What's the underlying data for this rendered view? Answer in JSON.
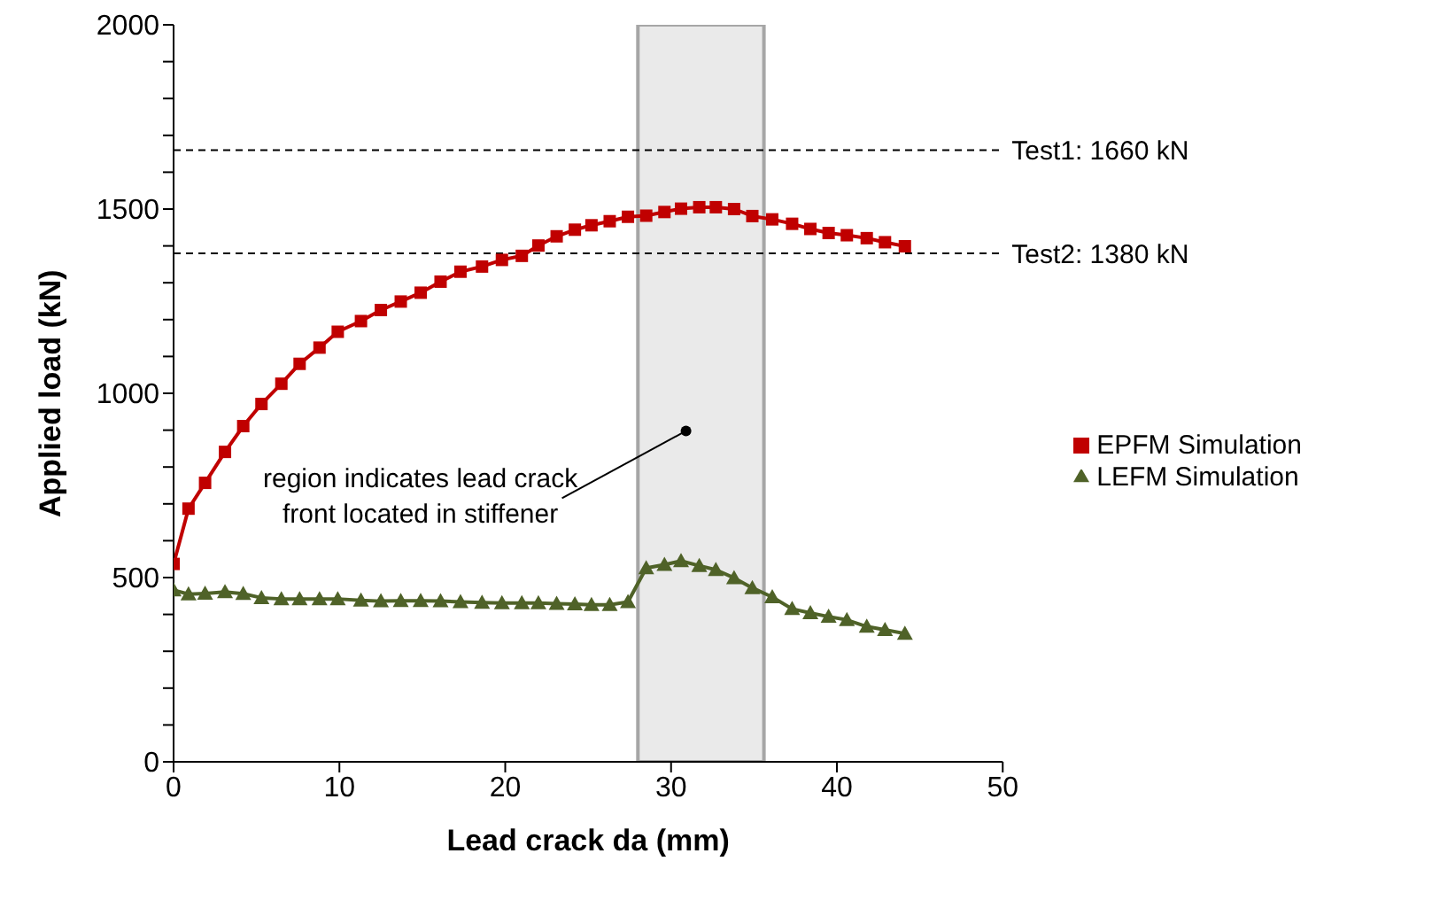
{
  "chart_data": {
    "type": "line",
    "xlabel": "Lead crack da (mm)",
    "ylabel": "Applied load (kN)",
    "x": [
      0,
      0.9,
      1.9,
      3.1,
      4.2,
      5.3,
      6.5,
      7.6,
      8.8,
      9.9,
      11.3,
      12.5,
      13.7,
      14.9,
      16.1,
      17.3,
      18.6,
      19.8,
      21.0,
      22.0,
      23.1,
      24.2,
      25.2,
      26.3,
      27.4,
      28.5,
      29.6,
      30.6,
      31.7,
      32.7,
      33.8,
      34.9,
      36.1,
      37.3,
      38.4,
      39.5,
      40.6,
      41.8,
      42.9,
      44.1
    ],
    "series": [
      {
        "name": "EPFM Simulation",
        "color": "#c00000",
        "marker": "square",
        "values": [
          537,
          687,
          757,
          841,
          911,
          971,
          1026,
          1080,
          1124,
          1167,
          1196,
          1226,
          1249,
          1273,
          1303,
          1330,
          1344,
          1362,
          1373,
          1401,
          1426,
          1444,
          1456,
          1467,
          1479,
          1482,
          1492,
          1501,
          1505,
          1505,
          1500,
          1481,
          1472,
          1460,
          1446,
          1435,
          1429,
          1421,
          1410,
          1399
        ]
      },
      {
        "name": "LEFM Simulation",
        "color": "#4f6228",
        "marker": "triangle",
        "values": [
          466,
          455,
          457,
          461,
          456,
          445,
          442,
          442,
          442,
          442,
          438,
          436,
          437,
          437,
          436,
          434,
          432,
          431,
          431,
          431,
          429,
          428,
          426,
          426,
          434,
          526,
          535,
          545,
          532,
          521,
          499,
          472,
          447,
          415,
          404,
          394,
          385,
          367,
          358,
          348
        ]
      }
    ],
    "xlim": [
      0,
      50
    ],
    "xticks": [
      0,
      10,
      20,
      30,
      40,
      50
    ],
    "ylim": [
      0,
      2000
    ],
    "yticks": [
      0,
      {
        "value": 100,
        "label": null
      },
      {
        "value": 200,
        "label": null
      },
      {
        "value": 300,
        "label": null
      },
      {
        "value": 400,
        "label": null
      },
      500,
      {
        "value": 600,
        "label": null
      },
      {
        "value": 700,
        "label": null
      },
      {
        "value": 800,
        "label": null
      },
      {
        "value": 900,
        "label": null
      },
      1000,
      {
        "value": 1100,
        "label": null
      },
      {
        "value": 1200,
        "label": null
      },
      {
        "value": 1300,
        "label": null
      },
      {
        "value": 1400,
        "label": null
      },
      1500,
      {
        "value": 1600,
        "label": null
      },
      {
        "value": 1700,
        "label": null
      },
      {
        "value": 1800,
        "label": null
      },
      {
        "value": 1900,
        "label": null
      },
      2000
    ],
    "ref_lines": [
      {
        "axis": "y",
        "value": 1660,
        "label": "Test1: 1660 kN",
        "color": "#000000",
        "line_style": "dashed"
      },
      {
        "axis": "y",
        "value": 1380,
        "label": "Test2: 1380 kN",
        "color": "#000000",
        "line_style": "dashed"
      }
    ],
    "bands": [
      {
        "axis": "x",
        "from": 28,
        "to": 35.6,
        "color": "#e8e8e8"
      }
    ],
    "annotations": [
      {
        "text": "region indicates lead crack front located in stiffener",
        "x": 30.9,
        "y": 898
      }
    ],
    "legend": "right",
    "line_style": "solid"
  }
}
